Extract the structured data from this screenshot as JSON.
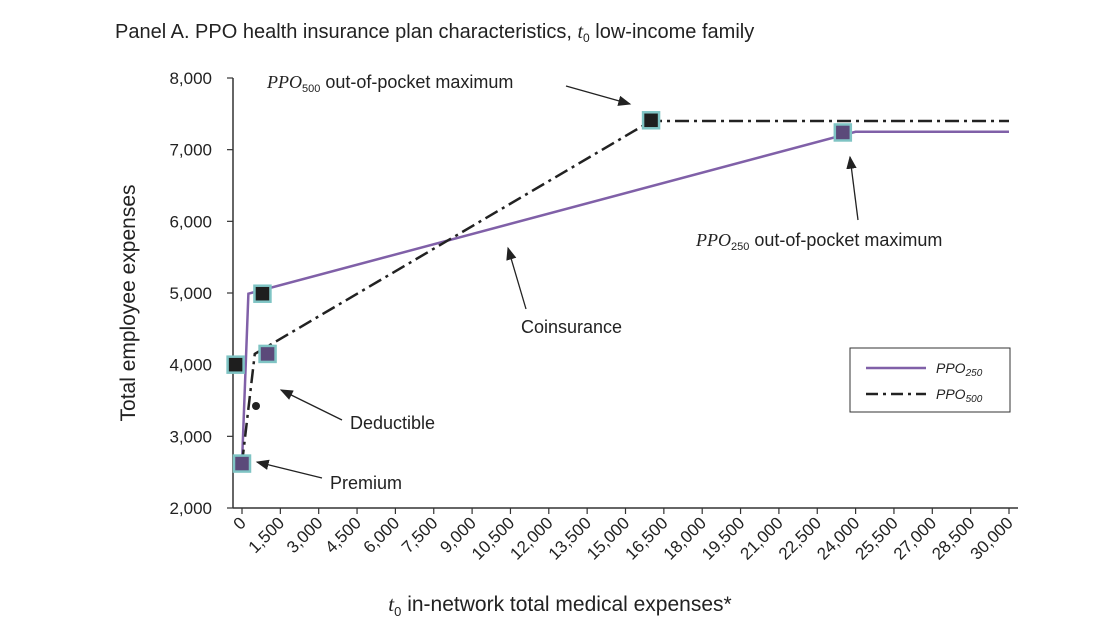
{
  "chart_data": {
    "type": "line",
    "title": "Panel A. PPO health insurance plan characteristics, ",
    "title_italic": "t",
    "title_sub": "0",
    "title_suffix": " low-income family",
    "ylabel": "Total employee expenses",
    "xlabel_italic": "t",
    "xlabel_sub": "0",
    "xlabel_text": " in-network total medical expenses*",
    "ylim": [
      2000,
      8000
    ],
    "xlim": [
      0,
      30000
    ],
    "y_ticks": [
      "2,000",
      "3,000",
      "4,000",
      "5,000",
      "6,000",
      "7,000",
      "8,000"
    ],
    "y_tick_values": [
      2000,
      3000,
      4000,
      5000,
      6000,
      7000,
      8000
    ],
    "x_ticks": [
      "0",
      "1,500",
      "3,000",
      "4,500",
      "6,000",
      "7,500",
      "9,000",
      "10,500",
      "12,000",
      "13,500",
      "15,000",
      "16,500",
      "18,000",
      "19,500",
      "21,000",
      "22,500",
      "24,000",
      "25,500",
      "27,000",
      "28,500",
      "30,000"
    ],
    "x_tick_values": [
      0,
      1500,
      3000,
      4500,
      6000,
      7500,
      9000,
      10500,
      12000,
      13500,
      15000,
      16500,
      18000,
      19500,
      21000,
      22500,
      24000,
      25500,
      27000,
      28500,
      30000
    ],
    "grid": false,
    "legend_position": "right",
    "series": [
      {
        "name": "PPO",
        "name_sub": "250",
        "color": "#8060a8",
        "style": "solid",
        "x": [
          0,
          250,
          24000,
          30000
        ],
        "y": [
          2620,
          4990,
          7250,
          7250
        ]
      },
      {
        "name": "PPO",
        "name_sub": "500",
        "color": "#222222",
        "style": "dashdot",
        "x": [
          0,
          500,
          16000,
          30000
        ],
        "y": [
          2620,
          4150,
          7400,
          7400
        ]
      }
    ],
    "markers": [
      {
        "x": -250,
        "y": 4000,
        "fill": "#1e1e1e"
      },
      {
        "x": 800,
        "y": 4990,
        "fill": "#1e1e1e"
      },
      {
        "x": 1000,
        "y": 4150,
        "fill": "#5b4a7a"
      },
      {
        "x": 0,
        "y": 2620,
        "fill": "#5b4a7a"
      },
      {
        "x": 16000,
        "y": 7410,
        "fill": "#1e1e1e"
      },
      {
        "x": 23500,
        "y": 7240,
        "fill": "#5b4a7a"
      }
    ],
    "annotations": [
      {
        "id": "ann-ppo500-oop",
        "italic": "PPO",
        "sub": "500",
        "text": " out-of-pocket maximum"
      },
      {
        "id": "ann-ppo250-oop",
        "italic": "PPO",
        "sub": "250",
        "text": " out-of-pocket maximum"
      },
      {
        "id": "ann-coinsurance",
        "text": "Coinsurance"
      },
      {
        "id": "ann-deductible",
        "text": "Deductible"
      },
      {
        "id": "ann-premium",
        "text": "Premium"
      }
    ],
    "colors": {
      "ppo250": "#8060a8",
      "ppo500": "#222222",
      "marker_border": "#7fc4c4"
    }
  }
}
